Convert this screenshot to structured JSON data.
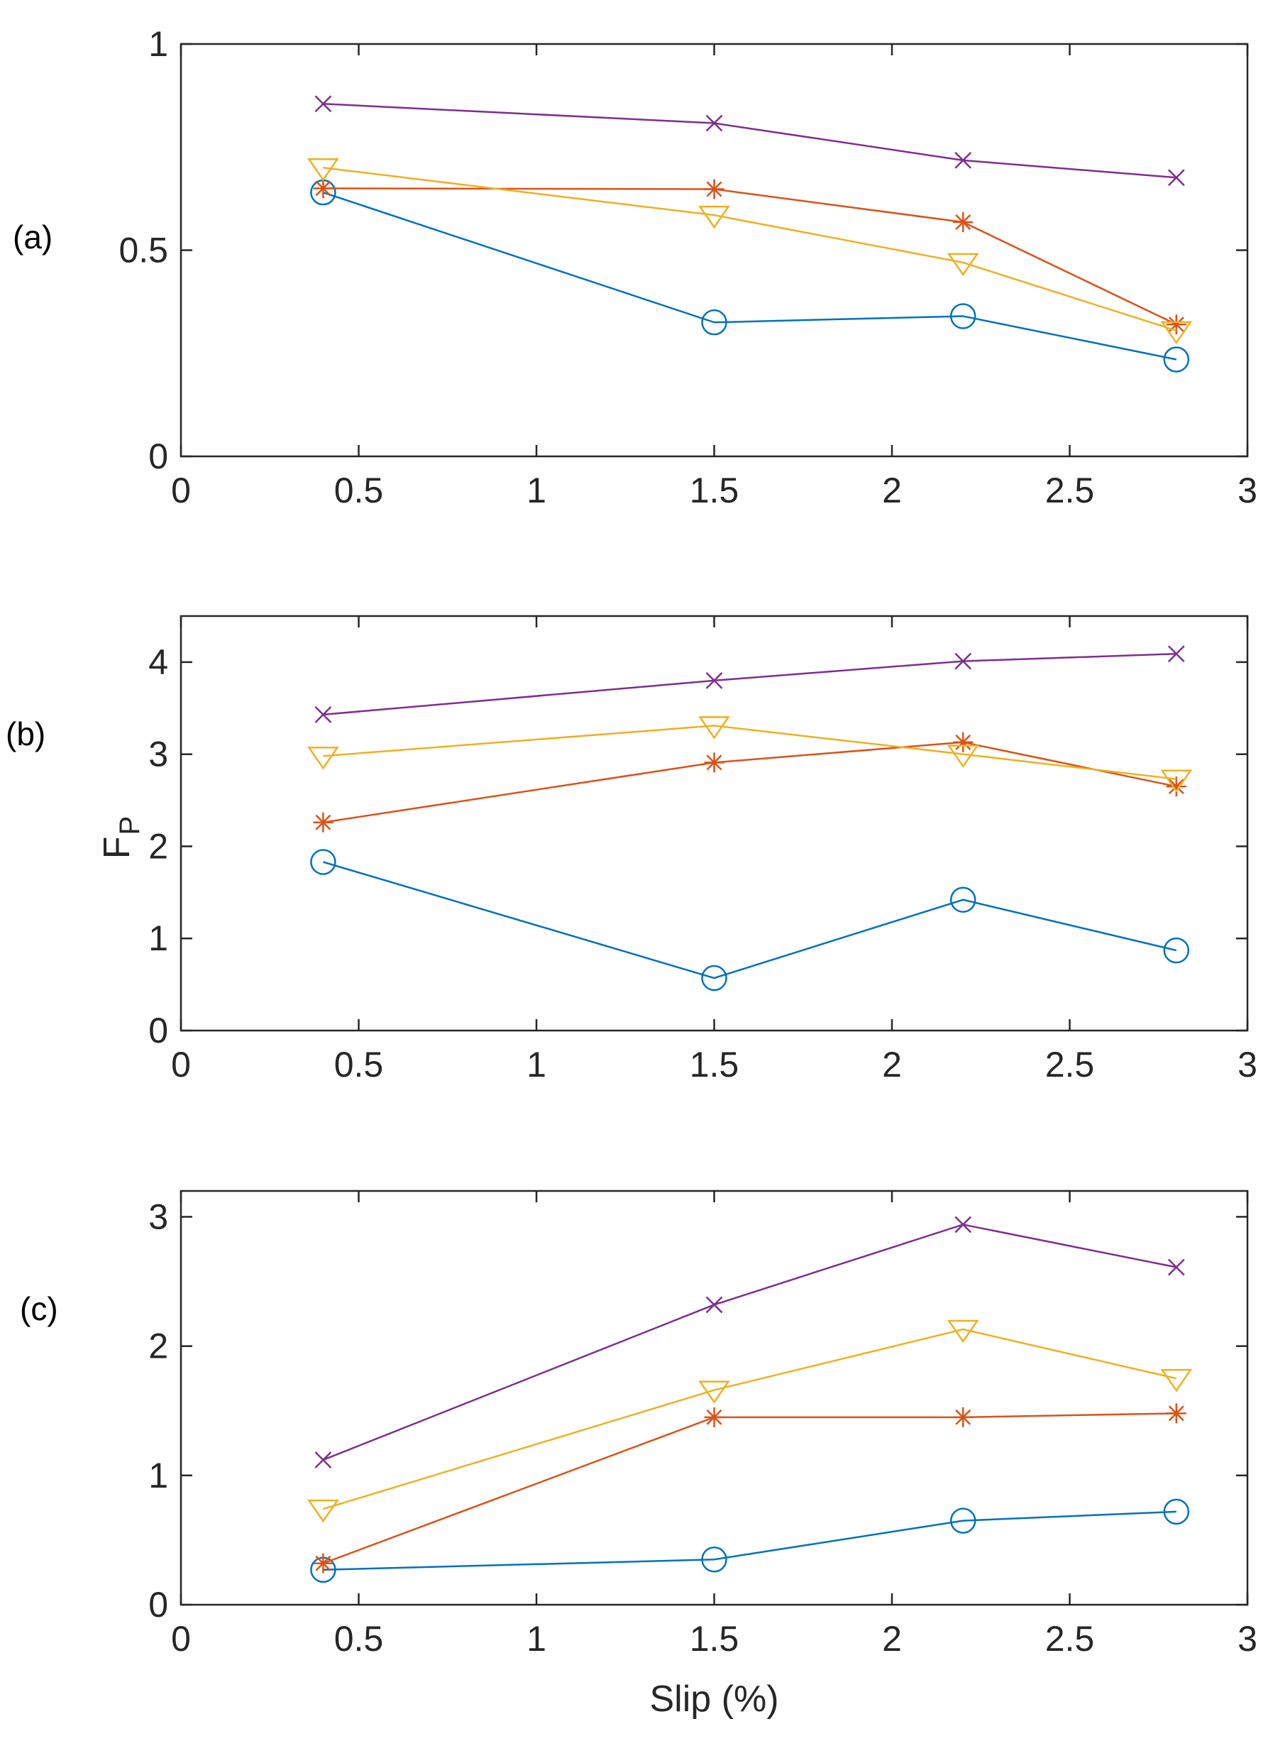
{
  "chart_data": [
    {
      "type": "line",
      "panel_label": "(a)",
      "xlim": [
        0,
        3
      ],
      "ylim": [
        0,
        1
      ],
      "xticks": [
        "0",
        "0.5",
        "1",
        "1.5",
        "2",
        "2.5",
        "3"
      ],
      "yticks": [
        "0",
        "0.5",
        "1"
      ],
      "xlabel": "",
      "ylabel": "",
      "x": [
        0.4,
        1.5,
        2.2,
        2.8
      ],
      "series": [
        {
          "name": "circle",
          "marker": "circle",
          "color": "#0072BD",
          "values": [
            0.64,
            0.325,
            0.34,
            0.235
          ]
        },
        {
          "name": "asterisk",
          "marker": "asterisk",
          "color": "#D95319",
          "values": [
            0.65,
            0.648,
            0.568,
            0.32
          ]
        },
        {
          "name": "triangle",
          "marker": "triangle-down",
          "color": "#EDB120",
          "values": [
            0.7,
            0.585,
            0.47,
            0.305
          ]
        },
        {
          "name": "cross",
          "marker": "x",
          "color": "#7E2F8E",
          "values": [
            0.855,
            0.808,
            0.718,
            0.676
          ]
        }
      ]
    },
    {
      "type": "line",
      "panel_label": "(b)",
      "xlim": [
        0,
        3
      ],
      "ylim": [
        0,
        4.5
      ],
      "xticks": [
        "0",
        "0.5",
        "1",
        "1.5",
        "2",
        "2.5",
        "3"
      ],
      "yticks": [
        "0",
        "1",
        "2",
        "3",
        "4"
      ],
      "xlabel": "",
      "ylabel_main": "F",
      "ylabel_sub": "P",
      "x": [
        0.4,
        1.5,
        2.2,
        2.8
      ],
      "series": [
        {
          "name": "circle",
          "marker": "circle",
          "color": "#0072BD",
          "values": [
            1.83,
            0.57,
            1.42,
            0.87
          ]
        },
        {
          "name": "asterisk",
          "marker": "asterisk",
          "color": "#D95319",
          "values": [
            2.26,
            2.91,
            3.13,
            2.65
          ]
        },
        {
          "name": "triangle",
          "marker": "triangle-down",
          "color": "#EDB120",
          "values": [
            2.98,
            3.31,
            3.0,
            2.73
          ]
        },
        {
          "name": "cross",
          "marker": "x",
          "color": "#7E2F8E",
          "values": [
            3.43,
            3.8,
            4.01,
            4.09
          ]
        }
      ]
    },
    {
      "type": "line",
      "panel_label": "(c)",
      "xlim": [
        0,
        3
      ],
      "ylim": [
        0,
        3.2
      ],
      "xticks": [
        "0",
        "0.5",
        "1",
        "1.5",
        "2",
        "2.5",
        "3"
      ],
      "yticks": [
        "0",
        "1",
        "2",
        "3"
      ],
      "xlabel": "Slip (%)",
      "ylabel": "",
      "x": [
        0.4,
        1.5,
        2.2,
        2.8
      ],
      "series": [
        {
          "name": "circle",
          "marker": "circle",
          "color": "#0072BD",
          "values": [
            0.27,
            0.35,
            0.65,
            0.72
          ]
        },
        {
          "name": "asterisk",
          "marker": "asterisk",
          "color": "#D95319",
          "values": [
            0.32,
            1.45,
            1.45,
            1.48
          ]
        },
        {
          "name": "triangle",
          "marker": "triangle-down",
          "color": "#EDB120",
          "values": [
            0.74,
            1.66,
            2.13,
            1.75
          ]
        },
        {
          "name": "cross",
          "marker": "x",
          "color": "#7E2F8E",
          "values": [
            1.12,
            2.32,
            2.94,
            2.61
          ]
        }
      ]
    }
  ]
}
